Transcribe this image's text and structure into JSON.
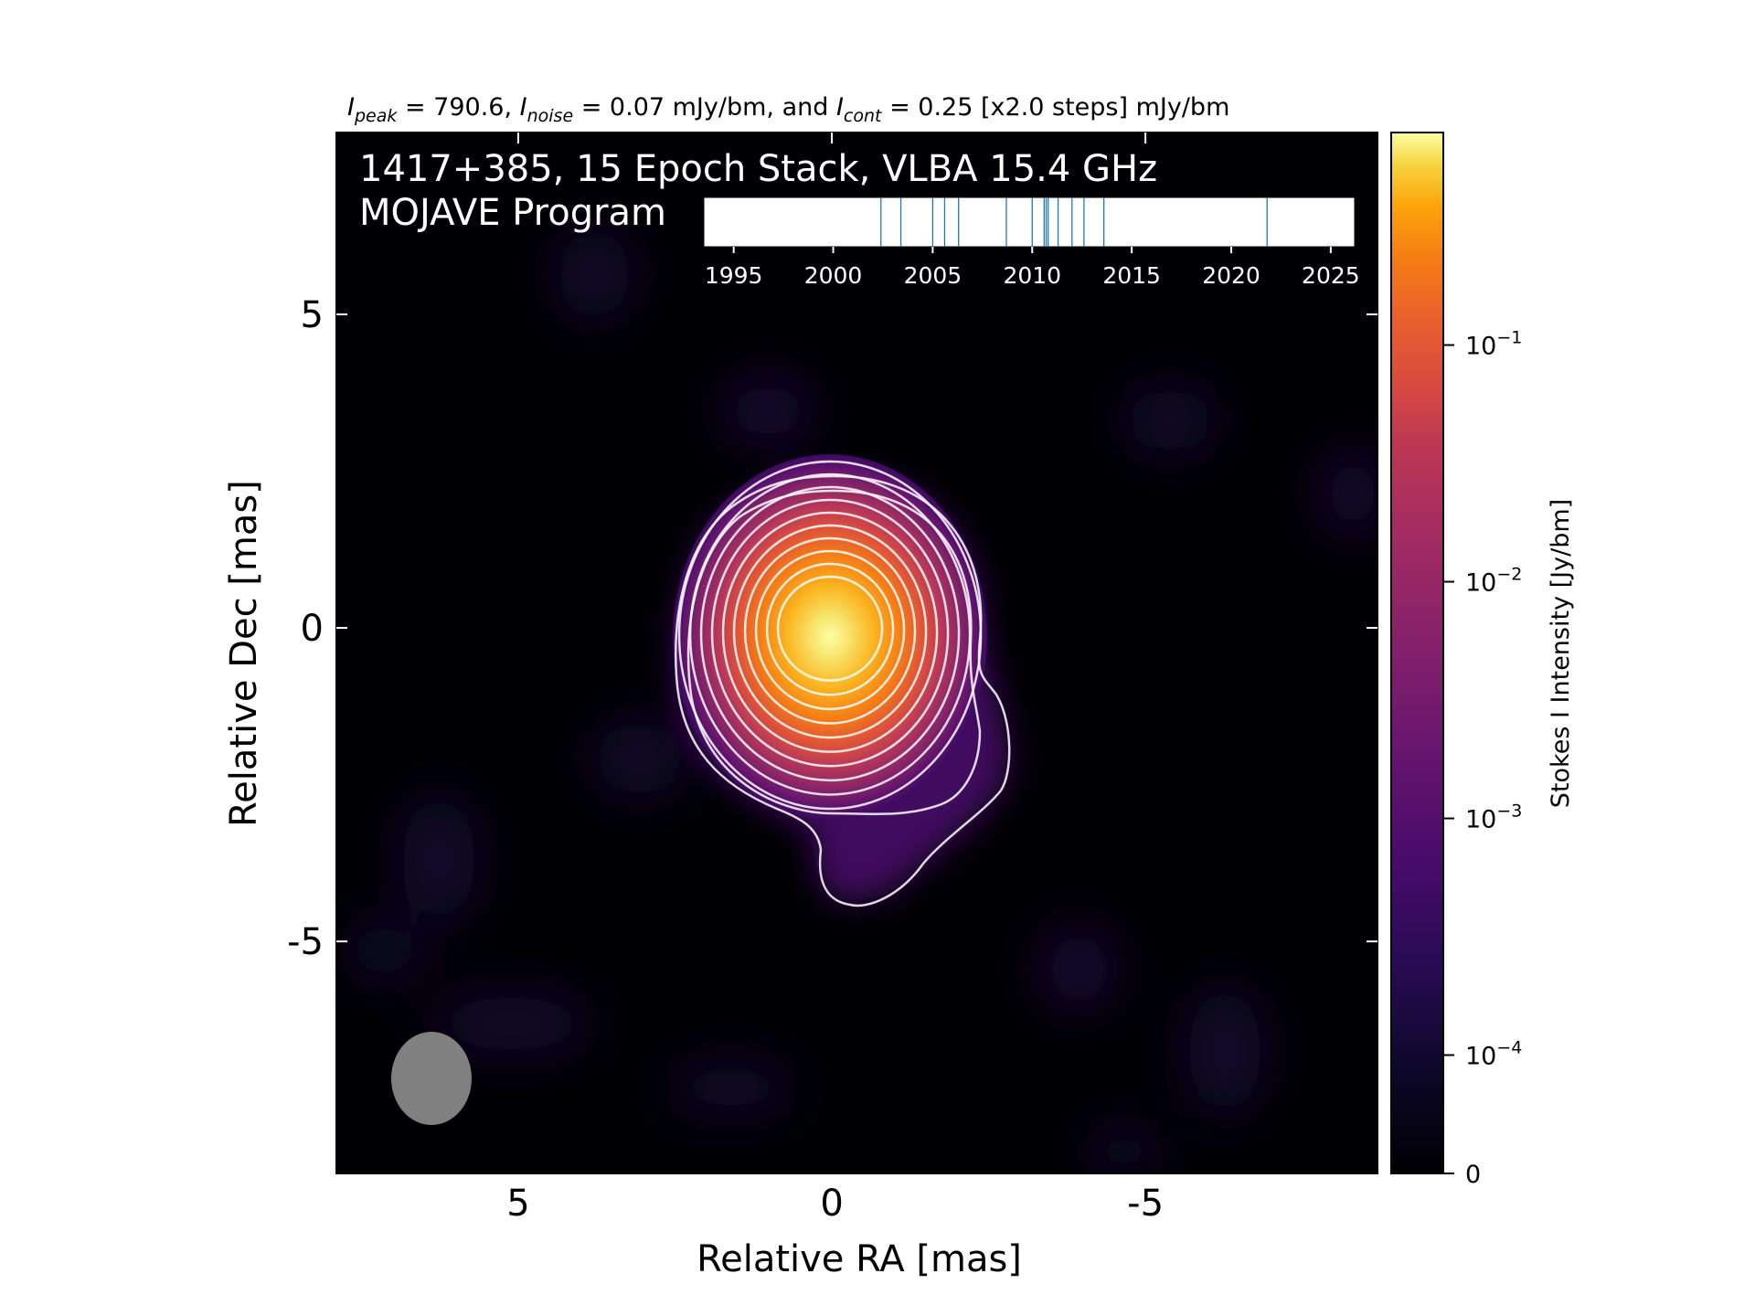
{
  "chart_data": {
    "type": "heatmap",
    "header": {
      "peak_sym": "I",
      "peak_sub": "peak",
      "peak_val": " = 790.6, ",
      "noise_sym": "I",
      "noise_sub": "noise",
      "noise_val": " = 0.07 mJy/bm, and ",
      "cont_sym": "I",
      "cont_sub": "cont",
      "cont_val": " = 0.25 [x2.0 steps] mJy/bm"
    },
    "title_line1": "1417+385, 15 Epoch Stack, VLBA 15.4 GHz",
    "title_line2": "MOJAVE Program",
    "xlabel": "Relative RA [mas]",
    "ylabel": "Relative Dec [mas]",
    "xlim": [
      7.9,
      -8.7
    ],
    "ylim": [
      -8.7,
      7.9
    ],
    "x_ticks": [
      5,
      0,
      -5
    ],
    "x_tick_labels": [
      "5",
      "0",
      "-5"
    ],
    "y_ticks": [
      5,
      0,
      -5
    ],
    "y_tick_labels": [
      "5",
      "0",
      "-5"
    ],
    "colorbar": {
      "label": "Stokes I Intensity [Jy/bm]",
      "colormap": "inferno",
      "scale": "symlog",
      "ticks": [
        {
          "value": 0,
          "label": "0"
        },
        {
          "value": 0.0001,
          "base": "10",
          "exp": "−4"
        },
        {
          "value": 0.001,
          "base": "10",
          "exp": "−3"
        },
        {
          "value": 0.01,
          "base": "10",
          "exp": "−2"
        },
        {
          "value": 0.1,
          "base": "10",
          "exp": "−1"
        }
      ],
      "max": 0.7906
    },
    "peak_position": [
      0,
      0
    ],
    "beam": {
      "center": [
        6.3,
        -7.1
      ],
      "fill": "#808080"
    },
    "epoch_timeline": {
      "xlim": [
        1993.5,
        2026.2
      ],
      "ticks": [
        1995,
        2000,
        2005,
        2010,
        2015,
        2020,
        2025
      ],
      "tick_labels": [
        "1995",
        "2000",
        "2005",
        "2010",
        "2015",
        "2020",
        "2025"
      ],
      "epochs": [
        2002.4,
        2003.4,
        2005.0,
        2005.6,
        2006.3,
        2008.7,
        2010.0,
        2010.6,
        2010.8,
        2011.3,
        2012.0,
        2012.6,
        2013.6,
        2021.8,
        2010.7
      ],
      "line_color": "#1f77b4"
    },
    "contours": {
      "count": 12,
      "color": "#ffffff"
    }
  }
}
